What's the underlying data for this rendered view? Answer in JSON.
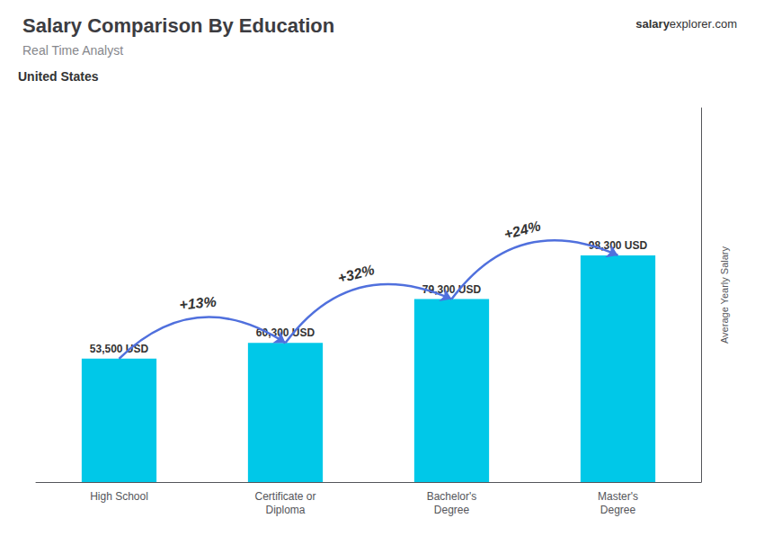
{
  "chart_data": {
    "type": "bar",
    "title": "Salary Comparison By Education",
    "subtitle": "Real Time Analyst",
    "annotations": [
      "United States",
      "salary",
      "explorer",
      ".com"
    ],
    "change_labels": [
      "+13%",
      "+32%",
      "+24%"
    ],
    "y_label": "Average Yearly Salary",
    "categories": [
      "High School",
      "Certificate or\nDiploma",
      "Bachelor's\nDegree",
      "Master's\nDegree"
    ],
    "values": [
      53500,
      60300,
      79300,
      98300
    ],
    "value_labels": [
      "53,500 USD",
      "60,300 USD",
      "79,300 USD",
      "98,300 USD"
    ],
    "data_labels": true,
    "color": "#00c8e8",
    "ylim": [
      0,
      162195
    ],
    "tick_labels": "x",
    "grid": false
  }
}
